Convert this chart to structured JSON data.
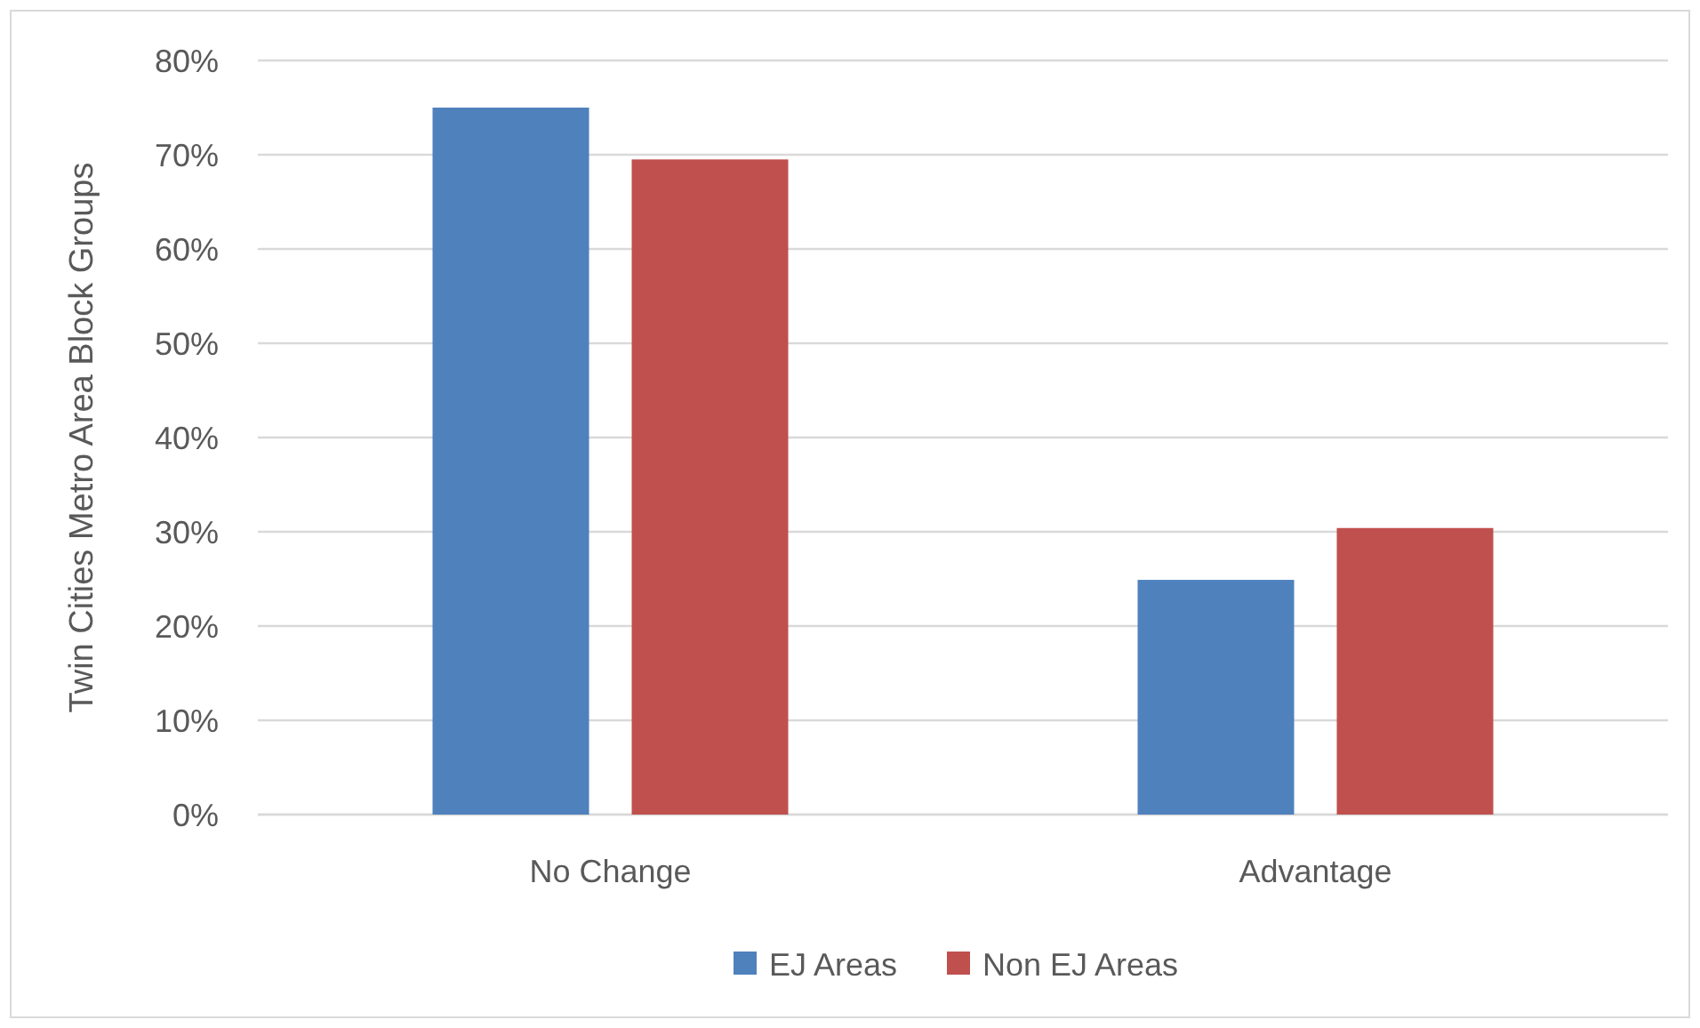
{
  "chart_data": {
    "type": "bar",
    "ylabel": "Twin Cities Metro Area Block Groups",
    "categories": [
      "No Change",
      "Advantage"
    ],
    "series": [
      {
        "name": "EJ Areas",
        "color": "#4f81bd",
        "values": [
          75,
          24.9
        ]
      },
      {
        "name": "Non EJ Areas",
        "color": "#c0504d",
        "values": [
          69.5,
          30.4
        ]
      }
    ],
    "ylim": [
      0,
      80
    ],
    "yticks": [
      {
        "value": 0,
        "label": "0%"
      },
      {
        "value": 10,
        "label": "10%"
      },
      {
        "value": 20,
        "label": "20%"
      },
      {
        "value": 30,
        "label": "30%"
      },
      {
        "value": 40,
        "label": "40%"
      },
      {
        "value": 50,
        "label": "50%"
      },
      {
        "value": 60,
        "label": "60%"
      },
      {
        "value": 70,
        "label": "70%"
      },
      {
        "value": 80,
        "label": "80%"
      }
    ],
    "grid": "y",
    "legend": "bottom"
  }
}
